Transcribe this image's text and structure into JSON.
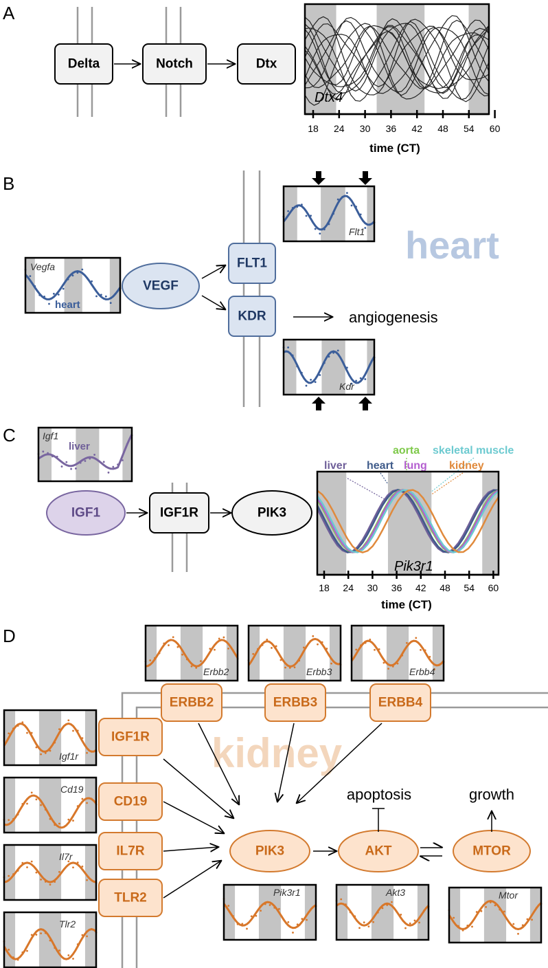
{
  "panels": {
    "A": {
      "letter": "A",
      "nodes": [
        "Delta",
        "Notch",
        "Dtx"
      ],
      "plot": {
        "gene": "Dtx4",
        "ticks": [
          "18",
          "24",
          "30",
          "36",
          "42",
          "48",
          "54",
          "60"
        ],
        "axis_title": "time (CT)"
      }
    },
    "B": {
      "letter": "B",
      "ligand": "VEGF",
      "receptors": [
        "FLT1",
        "KDR"
      ],
      "process": "angiogenesis",
      "watermark": "heart",
      "plots": {
        "vegfa": {
          "gene": "Vegfa",
          "tissue": "heart"
        },
        "flt1": {
          "gene": "Flt1"
        },
        "kdr": {
          "gene": "Kdr"
        }
      }
    },
    "C": {
      "letter": "C",
      "nodes": [
        "IGF1",
        "IGF1R",
        "PIK3"
      ],
      "igf1_plot": {
        "gene": "Igf1",
        "tissue": "liver"
      },
      "pik3r1_plot": {
        "gene": "Pik3r1",
        "ticks": [
          "18",
          "24",
          "30",
          "36",
          "42",
          "48",
          "54",
          "60"
        ],
        "axis_title": "time (CT)",
        "legend": [
          {
            "name": "liver",
            "color": "#6f5f99"
          },
          {
            "name": "heart",
            "color": "#3f5b8a"
          },
          {
            "name": "aorta",
            "color": "#7ec94a"
          },
          {
            "name": "lung",
            "color": "#b45fd0"
          },
          {
            "name": "skeletal muscle",
            "color": "#6ccad0"
          },
          {
            "name": "kidney",
            "color": "#e08a3c"
          }
        ]
      }
    },
    "D": {
      "letter": "D",
      "watermark": "kidney",
      "top_receptors": [
        "ERBB2",
        "ERBB3",
        "ERBB4"
      ],
      "side_receptors": [
        "IGF1R",
        "CD19",
        "IL7R",
        "TLR2"
      ],
      "core": [
        "PIK3",
        "AKT",
        "MTOR"
      ],
      "processes": [
        "apoptosis",
        "growth"
      ],
      "top_plot_genes": [
        "Erbb2",
        "Erbb3",
        "Erbb4"
      ],
      "side_plot_genes": [
        "Igf1r",
        "Cd19",
        "Il7r",
        "Tlr2"
      ],
      "bottom_plot_genes": [
        "Pik3r1",
        "Akt3",
        "Mtor"
      ]
    }
  },
  "colors": {
    "blue_fill": "#dbe4f1",
    "blue_stroke": "#4f6d9c",
    "blue_text": "#1f3864",
    "blue_curve": "#3b5e9a",
    "purple_fill": "#ddd3ea",
    "purple_stroke": "#7966a0",
    "orange_fill": "#fde3cd",
    "orange_stroke": "#d37a2e",
    "orange_text": "#c96a1a",
    "orange_curve": "#d8772a",
    "heart_watermark": "#b7c8e1",
    "kidney_watermark": "#f3d6bc"
  }
}
